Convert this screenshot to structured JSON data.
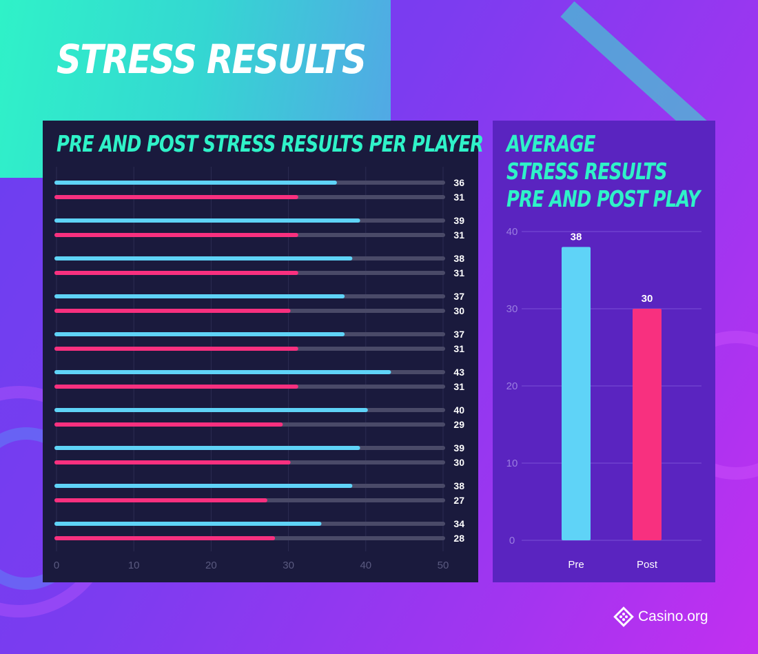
{
  "title": "STRESS RESULTS",
  "left_panel": {
    "title": "PRE AND POST STRESS RESULTS PER PLAYER"
  },
  "right_panel": {
    "title_lines": [
      "AVERAGE",
      "STRESS RESULTS",
      "PRE AND POST PLAY"
    ]
  },
  "logo": {
    "text": "Casino.org",
    "icon": "casino-diamond-icon"
  },
  "colors": {
    "pre": "#5fd3f7",
    "post": "#f8307f",
    "track": "#4a4a68",
    "accent": "#2ff2c8"
  },
  "chart_data": [
    {
      "type": "bar",
      "orientation": "horizontal",
      "title": "PRE AND POST STRESS RESULTS PER PLAYER",
      "xlim": [
        0,
        50
      ],
      "x_ticks": [
        0,
        10,
        20,
        30,
        40,
        50
      ],
      "grid": true,
      "series": [
        {
          "values": [
            36,
            39,
            38,
            37,
            37,
            43,
            40,
            39,
            38,
            34
          ]
        },
        {
          "values": [
            31,
            31,
            31,
            30,
            31,
            31,
            29,
            30,
            27,
            28
          ]
        }
      ]
    },
    {
      "type": "bar",
      "title": "AVERAGE STRESS RESULTS PRE AND POST PLAY",
      "categories": [
        "Pre",
        "Post"
      ],
      "values": [
        38,
        30
      ],
      "ylim": [
        0,
        40
      ],
      "y_ticks": [
        0,
        10,
        20,
        30,
        40
      ],
      "grid": true
    }
  ]
}
